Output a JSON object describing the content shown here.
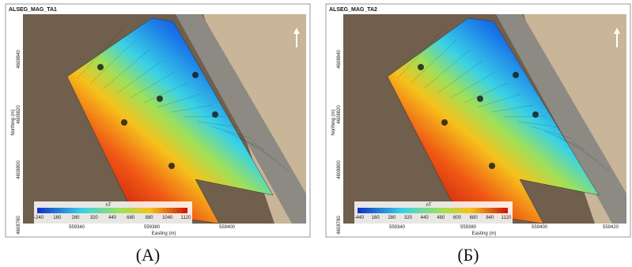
{
  "panels": [
    {
      "title": "ALSEG_MAG_TA1",
      "x_label": "Easting (m)",
      "y_label": "Northing (m)",
      "x_ticks": [
        "559340",
        "559380",
        "559400"
      ],
      "y_ticks": [
        "4608840",
        "4608820",
        "4608800",
        "4608780"
      ],
      "colorbar_unit": "nT",
      "colorbar_ticks": [
        "-240",
        "160",
        "280",
        "320",
        "440",
        "680",
        "880",
        "1040",
        "1120"
      ],
      "caption": "(A)"
    },
    {
      "title": "ALSEG_MAG_TA2",
      "x_label": "Easting (m)",
      "y_label": "Northing (m)",
      "x_ticks": [
        "559340",
        "559380",
        "559400",
        "559420"
      ],
      "y_ticks": [
        "4608840",
        "4608820",
        "4608800",
        "4608780"
      ],
      "colorbar_unit": "nT",
      "colorbar_ticks": [
        "-440",
        "160",
        "280",
        "320",
        "440",
        "480",
        "600",
        "680",
        "840",
        "1120"
      ],
      "caption": "(Б)"
    }
  ]
}
